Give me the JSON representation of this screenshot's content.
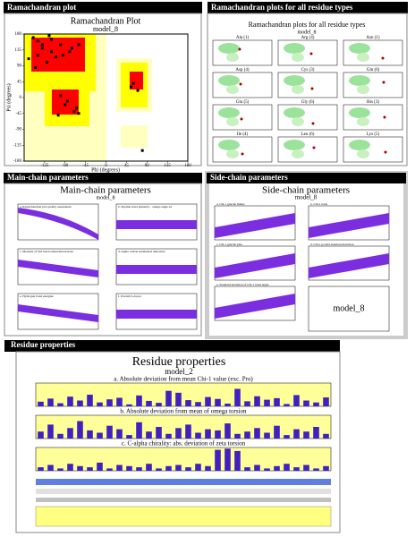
{
  "panels": [
    {
      "heading": "Ramachandran plot",
      "title": "Ramachandran Plot",
      "subtitle": "model_8",
      "ylabel": "Psi (degrees)",
      "xlabel": "Phi (degrees)",
      "xlim": [
        -180,
        180
      ],
      "ylim": [
        -180,
        180
      ],
      "xticks": [
        -135,
        -90,
        -45,
        0,
        45,
        90,
        135,
        180
      ],
      "yticks": [
        180,
        135,
        90,
        45,
        0,
        -45,
        -90,
        -135,
        -180
      ],
      "phi": [
        -150,
        -140,
        -120,
        -100,
        -80,
        -130,
        -160,
        -110,
        -70,
        -65,
        -90,
        -60,
        -75,
        -120,
        -95,
        -150,
        -85,
        -140,
        60,
        55,
        70,
        -100,
        -170,
        -60,
        80,
        -125,
        -105,
        -155
      ],
      "psi": [
        160,
        140,
        130,
        150,
        130,
        100,
        170,
        115,
        -40,
        -30,
        -20,
        -45,
        140,
        165,
        120,
        120,
        -10,
        150,
        40,
        30,
        20,
        5,
        110,
        150,
        -150,
        175,
        -50,
        85
      ]
    },
    {
      "heading": "Ramachandran plots for all residue types",
      "title": "Ramachandran plots for all residue types",
      "subtitle": "model_8",
      "plots": [
        "Ala (1)",
        "Arg (4)",
        "Asn (1)",
        "Asp (4)",
        "Cys (3)",
        "Gln (6)",
        "Glu (5)",
        "Gly (6)",
        "His (3)",
        "Ile (4)",
        "Leu (6)",
        "Lys (5)"
      ]
    },
    {
      "heading": "Main-chain parameters",
      "title": "Main-chain parameters",
      "subtitle": "model_8",
      "plots": [
        "a. Ramachandran plot quality assessment",
        "b. Peptide bond planarity - omega angle sd",
        "c. Measure of bad non-bonded interactions",
        "d. Alpha carbon tetrahedral distortion",
        "e. Hydrogen bond energies",
        "f. Overall G-factor"
      ]
    },
    {
      "heading": "Side-chain parameters",
      "title": "Side-chain parameters",
      "subtitle": "model_8",
      "box_label": "model_8",
      "plots": [
        "a. Chi-1 gauche minus",
        "b. Chi-1 trans",
        "c. Chi-1 gauche plus",
        "d. Chi-1 pooled standard deviation",
        "e. Standard deviation of Chi-1 trans angle"
      ]
    },
    {
      "heading": "Residue properties",
      "title": "Residue properties",
      "subtitle": "model_2",
      "sections": [
        {
          "caption": "a. Absolute deviation from mean Chi-1 value (exc. Pro)",
          "ylim": [
            0,
            60
          ],
          "values": [
            12,
            20,
            8,
            25,
            15,
            30,
            10,
            18,
            22,
            5,
            28,
            14,
            9,
            40,
            35,
            16,
            11,
            24,
            19,
            7,
            45,
            13,
            26,
            17,
            21,
            6,
            29,
            15,
            10,
            23
          ]
        },
        {
          "caption": "b. Absolute deviation from mean of omega torsion",
          "ylim": [
            0,
            20
          ],
          "values": [
            6,
            12,
            4,
            9,
            15,
            7,
            5,
            11,
            8,
            3,
            14,
            6,
            10,
            4,
            9,
            12,
            5,
            8,
            7,
            13,
            4,
            6,
            9,
            5,
            11,
            3,
            8,
            6,
            10,
            4
          ]
        },
        {
          "caption": "c. C-alpha chirality: abs. deviation of zeta torsion",
          "ylim": [
            0,
            20
          ],
          "values": [
            3,
            5,
            2,
            6,
            4,
            3,
            7,
            2,
            5,
            4,
            3,
            6,
            2,
            4,
            5,
            3,
            6,
            4,
            18,
            19,
            17,
            3,
            5,
            2,
            4,
            6,
            3,
            5,
            2,
            4
          ]
        }
      ]
    }
  ]
}
